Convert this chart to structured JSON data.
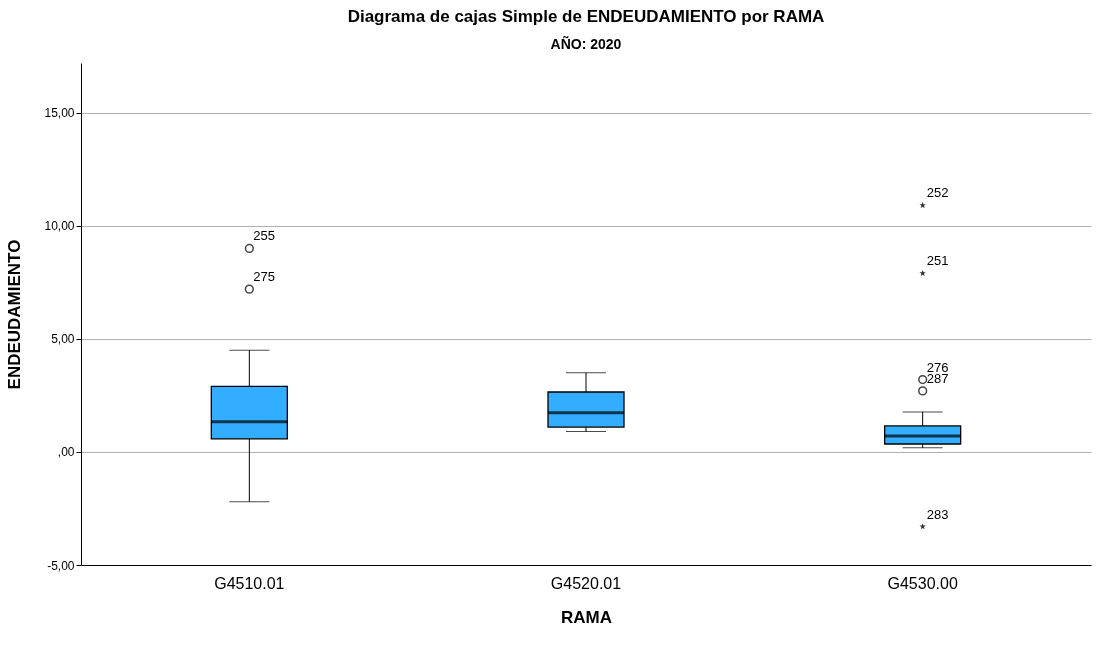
{
  "chart_data": {
    "type": "box",
    "title": "Diagrama de cajas Simple de ENDEUDAMIENTO por RAMA",
    "subtitle": "AÑO: 2020",
    "xlabel": "RAMA",
    "ylabel": "ENDEUDAMIENTO",
    "categories": [
      "G4510.01",
      "G4520.01",
      "G4530.00"
    ],
    "ylim": [
      -5,
      17.2
    ],
    "yticks": [
      {
        "value": -5,
        "label": "-5,00"
      },
      {
        "value": 0,
        "label": ",00"
      },
      {
        "value": 5,
        "label": "5,00"
      },
      {
        "value": 10,
        "label": "10,00"
      },
      {
        "value": 15,
        "label": "15,00"
      }
    ],
    "grid": "y",
    "series": [
      {
        "color": "#33adff",
        "boxes": [
          {
            "low": -2.2,
            "q1": 0.58,
            "median": 1.33,
            "q3": 2.9,
            "high": 4.5
          },
          {
            "low": 0.9,
            "q1": 1.1,
            "median": 1.73,
            "q3": 2.65,
            "high": 3.5
          },
          {
            "low": 0.18,
            "q1": 0.35,
            "median": 0.7,
            "q3": 1.15,
            "high": 1.77
          }
        ]
      },
      {
        "type": "scatter",
        "marker": "circle",
        "color": "#444444",
        "x": [
          "G4510.01",
          "G4510.01",
          "G4530.00",
          "G4530.00"
        ],
        "values": [
          9.0,
          7.2,
          3.2,
          2.7
        ]
      },
      {
        "type": "scatter",
        "marker": "star",
        "color": "#333333",
        "x": [
          "G4530.00",
          "G4530.00",
          "G4530.00"
        ],
        "values": [
          10.9,
          7.9,
          -3.3
        ]
      }
    ],
    "annotations": [
      {
        "text": "255",
        "x": "G4510.01",
        "y": 9.0
      },
      {
        "text": "275",
        "x": "G4510.01",
        "y": 7.2
      },
      {
        "text": "276",
        "x": "G4530.00",
        "y": 3.2
      },
      {
        "text": "287",
        "x": "G4530.00",
        "y": 2.7
      },
      {
        "text": "252",
        "x": "G4530.00",
        "y": 10.9
      },
      {
        "text": "251",
        "x": "G4530.00",
        "y": 7.9
      },
      {
        "text": "283",
        "x": "G4530.00",
        "y": -3.3
      }
    ]
  }
}
